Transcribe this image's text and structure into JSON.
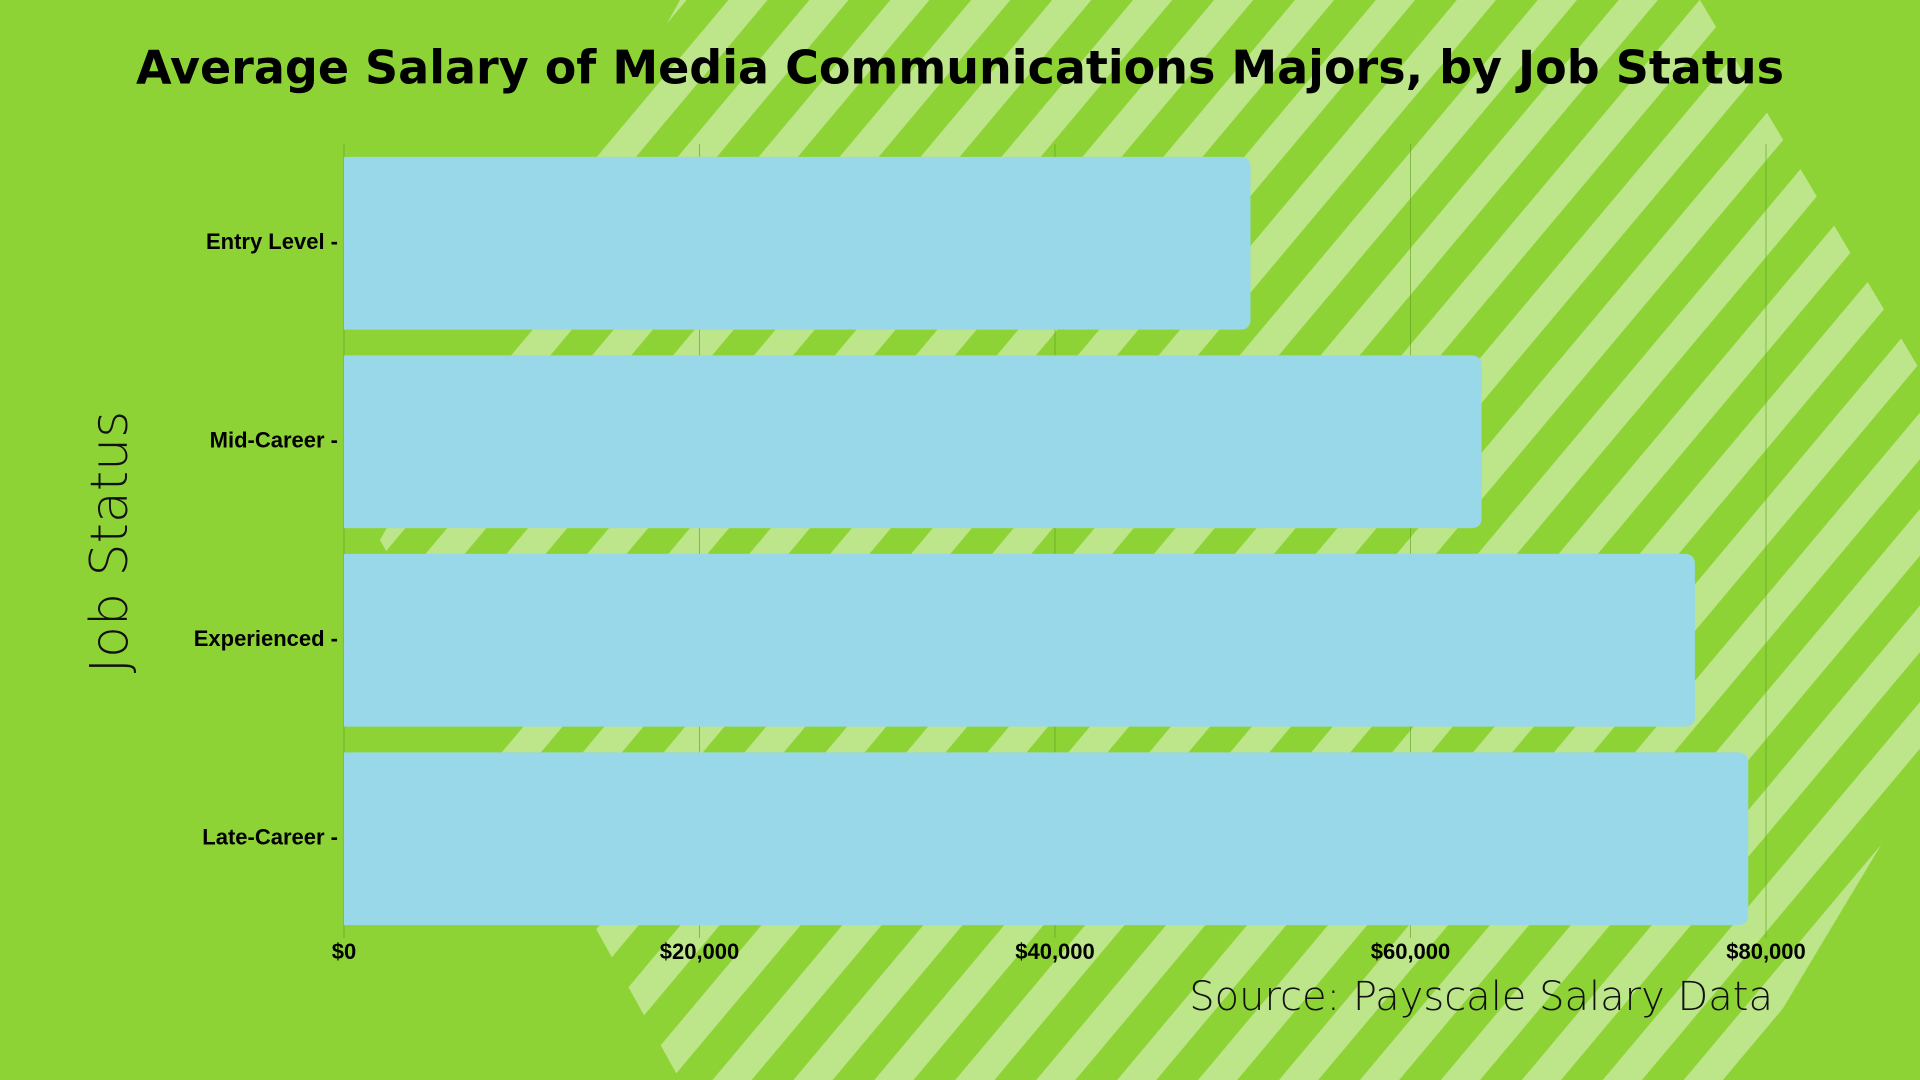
{
  "chart_data": {
    "type": "bar",
    "orientation": "horizontal",
    "title": "Average Salary of Media Communications Majors, by Job Status",
    "y_label": "Job Status",
    "source": "Source: Payscale Salary Data",
    "categories": [
      "Entry Level -",
      "Mid-Career -",
      "Experienced -",
      "Late-Career -"
    ],
    "values": [
      51000,
      64000,
      76000,
      79000
    ],
    "color": "#98d8e8",
    "xlim": [
      0,
      80000
    ],
    "xticks": [
      {
        "value": 0,
        "label": "$0"
      },
      {
        "value": 20000,
        "label": "$20,000"
      },
      {
        "value": 40000,
        "label": "$40,000"
      },
      {
        "value": 60000,
        "label": "$60,000"
      },
      {
        "value": 80000,
        "label": "$80,000"
      }
    ],
    "grid": true
  }
}
